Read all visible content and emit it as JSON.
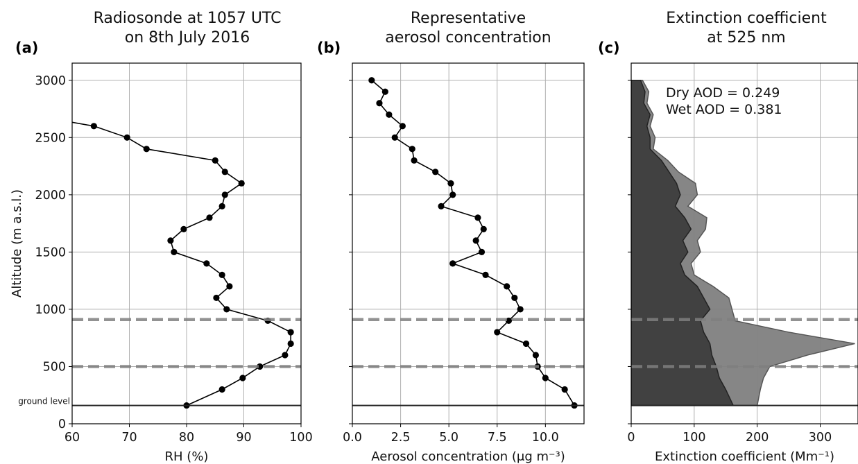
{
  "chart_data": [
    {
      "id": "a",
      "type": "line",
      "panel_label": "(a)",
      "title_lines": [
        "Radiosonde at 1057 UTC",
        "on 8th July 2016"
      ],
      "xlabel": "RH (%)",
      "ylabel": "Altitude (m a.s.l.)",
      "xlim": [
        60,
        100
      ],
      "ylim": [
        0,
        3150
      ],
      "xticks": [
        60,
        70,
        80,
        90,
        100
      ],
      "xtick_labels": [
        "60",
        "70",
        "80",
        "90",
        "100"
      ],
      "yticks": [
        0,
        500,
        1000,
        1500,
        2000,
        2500,
        3000
      ],
      "ytick_labels": [
        "0",
        "500",
        "1000",
        "1500",
        "2000",
        "2500",
        "3000"
      ],
      "grid": true,
      "ground_level": 160,
      "ground_label": "ground level",
      "hlines_dashed": [
        910,
        500
      ],
      "series": [
        {
          "x": [
            80,
            86.2,
            89.8,
            92.8,
            97.2,
            98.2,
            98.2,
            94.2,
            87,
            85.2,
            87.5,
            86.2,
            83.5,
            77.8,
            77.2,
            79.5,
            84,
            86.2,
            86.7,
            89.6,
            86.7,
            85,
            73,
            69.6,
            63.8,
            50
          ],
          "y": [
            160,
            300,
            400,
            500,
            600,
            700,
            800,
            900,
            1000,
            1100,
            1200,
            1300,
            1400,
            1500,
            1600,
            1700,
            1800,
            1900,
            2000,
            2100,
            2200,
            2300,
            2400,
            2500,
            2600,
            2720
          ]
        }
      ]
    },
    {
      "id": "b",
      "type": "line",
      "panel_label": "(b)",
      "title_lines": [
        "Representative",
        "aerosol concentration"
      ],
      "xlabel": "Aerosol concentration (μg m⁻³)",
      "xlim": [
        0,
        12
      ],
      "ylim": [
        0,
        3150
      ],
      "xticks": [
        0,
        2.5,
        5,
        7.5,
        10
      ],
      "xtick_labels": [
        "0.0",
        "2.5",
        "5.0",
        "7.5",
        "10.0"
      ],
      "grid": true,
      "ground_level": 160,
      "hlines_dashed": [
        910,
        500
      ],
      "series": [
        {
          "x": [
            11.5,
            11,
            10,
            9.6,
            9.5,
            9,
            7.5,
            8.1,
            8.7,
            8.4,
            8,
            6.9,
            5.2,
            6.7,
            6.4,
            6.8,
            6.5,
            4.6,
            5.2,
            5.1,
            4.3,
            3.2,
            3.1,
            2.2,
            2.6,
            1.9,
            1.4,
            1.7,
            1.0
          ],
          "y": [
            160,
            300,
            400,
            500,
            600,
            700,
            800,
            900,
            1000,
            1100,
            1200,
            1300,
            1400,
            1500,
            1600,
            1700,
            1800,
            1900,
            2000,
            2100,
            2200,
            2300,
            2400,
            2500,
            2600,
            2700,
            2800,
            2900,
            3000
          ]
        }
      ]
    },
    {
      "id": "c",
      "type": "area",
      "panel_label": "(c)",
      "title_lines": [
        "Extinction coefficient",
        "at 525 nm"
      ],
      "xlabel": "Extinction coefficient (Mm⁻¹)",
      "xlim": [
        0,
        360
      ],
      "ylim": [
        0,
        3150
      ],
      "xticks": [
        0,
        100,
        200,
        300
      ],
      "xtick_labels": [
        "0",
        "100",
        "200",
        "300"
      ],
      "grid": true,
      "ground_level": 160,
      "hlines_dashed": [
        910,
        500
      ],
      "annotations": [
        "Dry AOD = 0.249",
        "Wet AOD = 0.381"
      ],
      "series": [
        {
          "fill": "#808080",
          "y": [
            160,
            300,
            400,
            500,
            600,
            700,
            800,
            900,
            1000,
            1100,
            1200,
            1300,
            1400,
            1500,
            1600,
            1700,
            1800,
            1900,
            2000,
            2100,
            2200,
            2300,
            2400,
            2500,
            2600,
            2700,
            2800,
            2900,
            3000
          ],
          "x": [
            200,
            205,
            210,
            220,
            280,
            355,
            250,
            165,
            160,
            155,
            130,
            100,
            95,
            110,
            105,
            118,
            120,
            90,
            105,
            102,
            75,
            58,
            35,
            38,
            30,
            35,
            25,
            28,
            18
          ]
        },
        {
          "fill": "#3d3d3d",
          "y": [
            160,
            300,
            400,
            500,
            600,
            700,
            800,
            900,
            1000,
            1100,
            1200,
            1300,
            1400,
            1500,
            1600,
            1700,
            1800,
            1900,
            2000,
            2100,
            2200,
            2300,
            2400,
            2500,
            2600,
            2700,
            2800,
            2900,
            3000
          ],
          "x": [
            162,
            150,
            140,
            135,
            128,
            125,
            115,
            110,
            125,
            115,
            105,
            85,
            78,
            90,
            82,
            95,
            85,
            70,
            78,
            72,
            60,
            48,
            30,
            30,
            25,
            30,
            20,
            22,
            15
          ]
        }
      ]
    }
  ]
}
